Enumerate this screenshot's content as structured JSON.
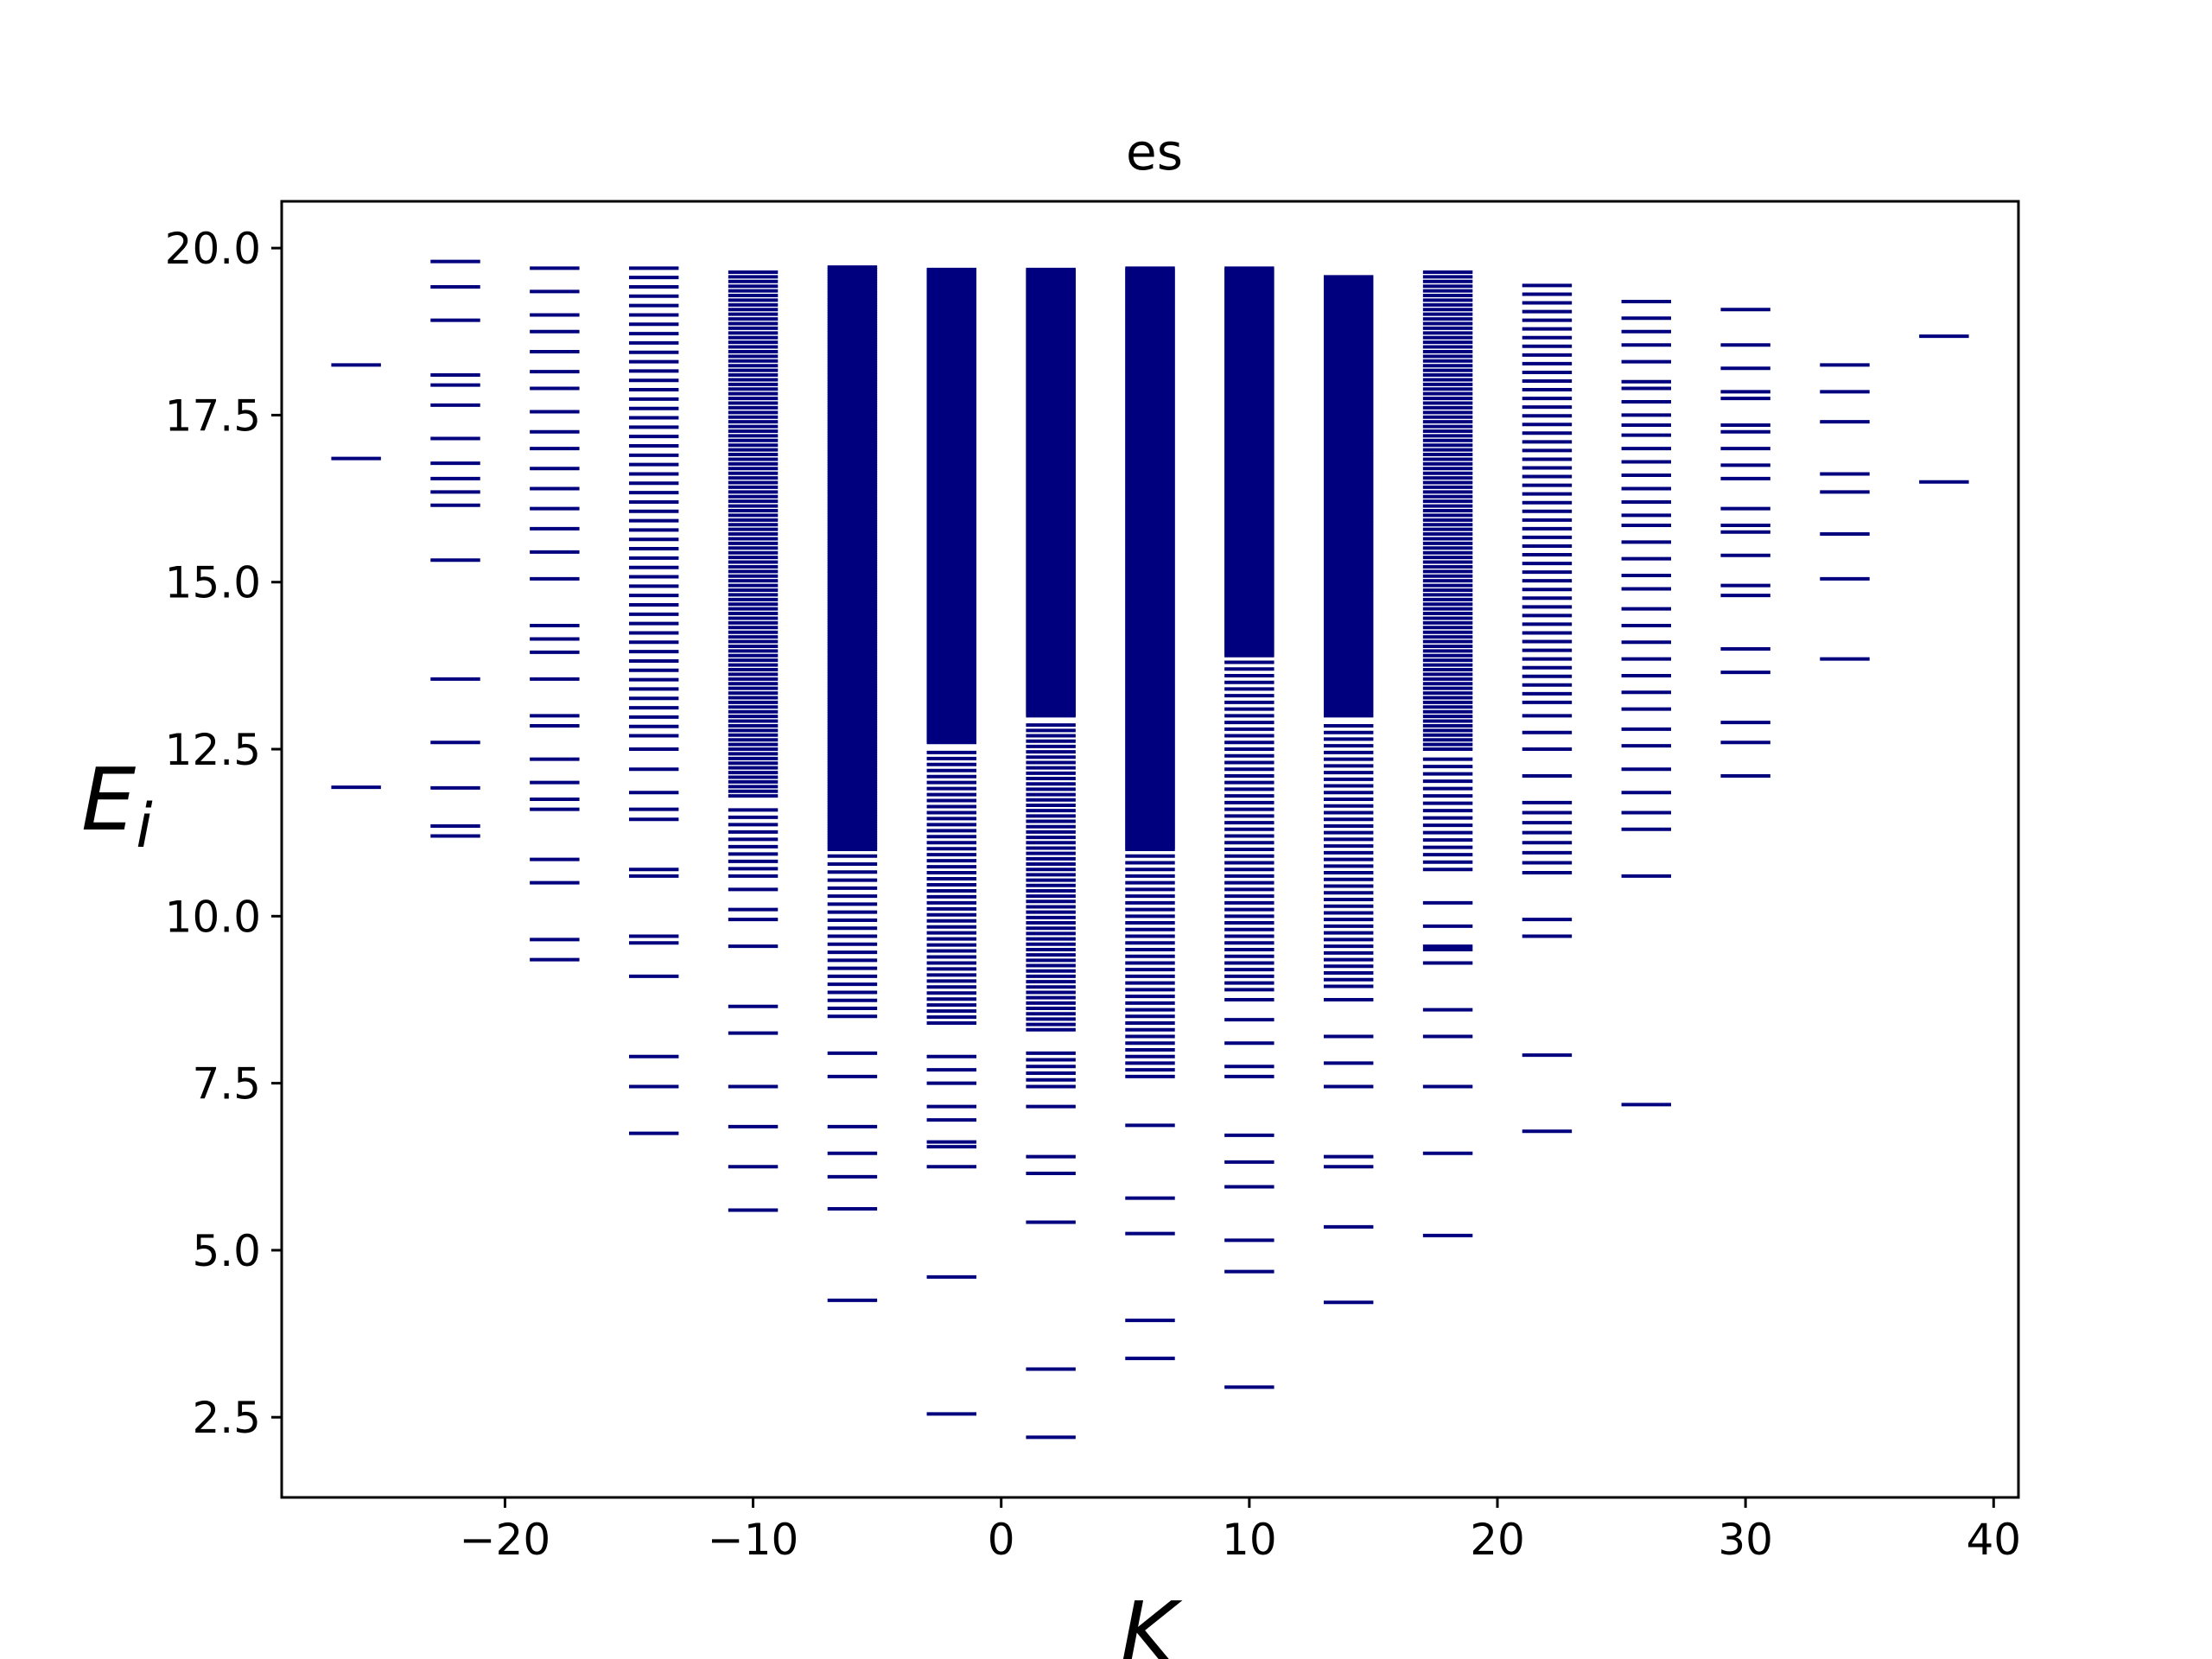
{
  "chart_data": {
    "type": "scatter",
    "marker": "horizontal-line",
    "title": "es",
    "xlabel": "K",
    "ylabel": "E_i",
    "xlim": [
      -29,
      41
    ],
    "ylim": [
      1.3,
      20.7
    ],
    "xticks": [
      -20,
      -10,
      0,
      10,
      20,
      30,
      40
    ],
    "yticks": [
      2.5,
      5.0,
      7.5,
      10.0,
      12.5,
      15.0,
      17.5,
      20.0
    ],
    "xtick_labels": [
      "−20",
      "−10",
      "0",
      "10",
      "20",
      "30",
      "40"
    ],
    "ytick_labels": [
      "2.5",
      "5.0",
      "7.5",
      "10.0",
      "12.5",
      "15.0",
      "17.5",
      "20.0"
    ],
    "grid": false,
    "color": "#00007f",
    "series": [
      {
        "k": -26,
        "sparse": [
          11.93,
          16.85,
          18.25
        ],
        "bands": []
      },
      {
        "k": -22,
        "sparse": [
          11.2,
          11.35,
          11.92,
          12.6,
          13.55,
          15.33,
          16.15,
          16.35,
          16.55,
          16.78,
          17.15,
          17.65,
          17.95,
          18.1,
          18.92,
          19.42,
          19.8
        ],
        "bands": []
      },
      {
        "k": -18,
        "sparse": [
          9.35,
          9.65,
          10.5,
          10.85,
          11.6,
          11.75,
          12.0,
          12.35,
          12.85,
          13.0,
          13.55,
          13.95,
          14.15,
          14.35,
          15.05,
          15.45,
          15.8,
          16.1,
          16.4,
          16.7,
          17.0,
          17.25,
          17.55,
          17.9,
          18.15,
          18.45,
          18.75,
          19.0,
          19.35,
          19.7
        ],
        "bands": []
      },
      {
        "k": -14,
        "sparse": [
          6.75,
          7.45,
          7.9,
          9.1,
          9.6,
          9.7,
          10.6,
          10.7,
          11.45,
          11.6,
          11.85,
          12.2,
          12.5
        ],
        "bands": [
          [
            12.7,
            19.75,
            0.14
          ]
        ]
      },
      {
        "k": -10,
        "sparse": [
          5.6,
          6.25,
          6.85,
          7.45,
          8.25,
          8.65,
          9.55,
          9.95,
          10.1,
          10.4
        ],
        "bands": [
          [
            10.6,
            11.6,
            0.11
          ],
          [
            11.8,
            19.7,
            0.07
          ]
        ]
      },
      {
        "k": -6,
        "sparse": [
          4.25,
          5.62,
          6.1,
          6.45,
          6.85,
          7.6,
          7.95
        ],
        "bands": [
          [
            8.5,
            10.9,
            0.12
          ],
          [
            11.0,
            19.72,
            0.035
          ]
        ]
      },
      {
        "k": -2,
        "sparse": [
          2.55,
          4.6,
          6.25,
          6.55,
          6.62,
          6.95,
          7.15,
          7.5,
          7.7,
          7.9
        ],
        "bands": [
          [
            8.4,
            12.5,
            0.09
          ],
          [
            12.6,
            19.68,
            0.02
          ]
        ]
      },
      {
        "k": 2,
        "sparse": [
          2.2,
          3.22,
          5.42,
          6.15,
          6.4,
          7.15
        ],
        "bands": [
          [
            7.45,
            7.95,
            0.1
          ],
          [
            8.3,
            12.9,
            0.08
          ],
          [
            13.0,
            19.68,
            0.02
          ]
        ]
      },
      {
        "k": 6,
        "sparse": [
          3.38,
          3.95,
          5.25,
          5.78,
          6.87
        ],
        "bands": [
          [
            7.6,
            10.9,
            0.1
          ],
          [
            11.0,
            19.72,
            0.025
          ]
        ]
      },
      {
        "k": 10,
        "sparse": [
          2.95,
          4.68,
          5.15,
          5.95,
          6.32,
          6.72,
          7.6,
          7.75,
          8.1,
          8.45,
          8.75
        ],
        "bands": [
          [
            8.9,
            13.8,
            0.1
          ],
          [
            13.9,
            19.7,
            0.025
          ]
        ]
      },
      {
        "k": 14,
        "sparse": [
          4.22,
          5.35,
          6.25,
          6.4,
          7.45,
          7.8,
          8.2,
          8.75
        ],
        "bands": [
          [
            8.95,
            12.9,
            0.1
          ],
          [
            13.0,
            19.6,
            0.045
          ]
        ]
      },
      {
        "k": 18,
        "sparse": [
          5.22,
          6.45,
          7.45,
          8.2,
          8.6,
          9.3,
          9.5,
          9.55,
          9.85,
          10.2
        ],
        "bands": [
          [
            10.7,
            12.4,
            0.11
          ],
          [
            12.5,
            19.65,
            0.07
          ]
        ]
      },
      {
        "k": 22,
        "sparse": [
          6.78,
          7.92,
          9.7,
          9.95,
          10.65,
          10.8,
          10.95,
          11.1,
          11.25,
          11.4,
          11.55,
          11.7,
          12.1,
          12.5,
          12.75,
          13.0
        ],
        "bands": [
          [
            13.2,
            19.55,
            0.13
          ]
        ]
      },
      {
        "k": 26,
        "sparse": [
          7.18,
          10.6,
          11.3,
          11.55,
          11.85,
          12.2,
          12.55,
          12.8,
          13.1,
          13.35,
          13.6,
          13.85,
          14.1,
          14.35,
          14.6,
          14.9,
          15.1,
          15.35,
          15.6,
          15.85,
          16.0,
          16.2,
          16.4,
          16.6,
          16.8,
          17.0,
          17.2,
          17.35,
          17.5,
          17.7,
          17.9,
          18.0,
          18.3,
          18.55,
          18.75,
          18.95,
          19.2
        ],
        "bands": []
      },
      {
        "k": 30,
        "sparse": [
          12.1,
          12.6,
          12.9,
          13.65,
          14.0,
          14.8,
          14.95,
          15.4,
          15.75,
          15.85,
          16.1,
          16.55,
          16.75,
          17.0,
          17.25,
          17.35,
          17.75,
          17.85,
          18.2,
          18.55,
          19.08
        ],
        "bands": []
      },
      {
        "k": 34,
        "sparse": [
          13.85,
          15.05,
          15.72,
          16.35,
          16.62,
          17.4,
          17.85,
          18.25
        ],
        "bands": []
      },
      {
        "k": 38,
        "sparse": [
          16.5,
          18.68
        ],
        "bands": []
      }
    ]
  }
}
